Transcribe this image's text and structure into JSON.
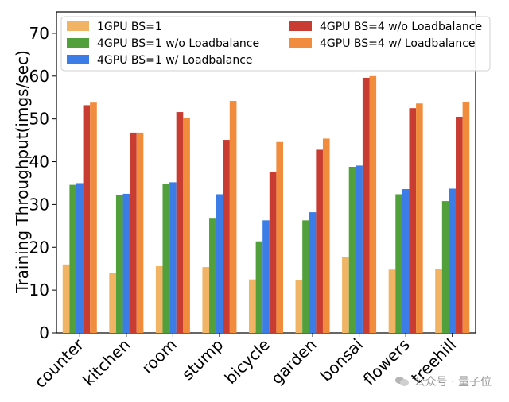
{
  "chart_data": {
    "type": "bar",
    "title": "",
    "xlabel": "",
    "ylabel": "Training Throughput(imgs/sec)",
    "ylim": [
      0,
      75
    ],
    "yticks": [
      0,
      10,
      20,
      30,
      40,
      50,
      60,
      70
    ],
    "grid": false,
    "legend_position": "top",
    "categories": [
      "counter",
      "kitchen",
      "room",
      "stump",
      "bicycle",
      "garden",
      "bonsai",
      "flowers",
      "treehill"
    ],
    "series": [
      {
        "name": "1GPU BS=1",
        "color": "#f0b464",
        "values": [
          16.0,
          14.0,
          15.6,
          15.4,
          12.5,
          12.3,
          17.8,
          14.8,
          15.0
        ]
      },
      {
        "name": "4GPU BS=1 w/o  Loadbalance",
        "color": "#52a03c",
        "values": [
          34.6,
          32.3,
          34.8,
          26.7,
          21.4,
          26.3,
          38.8,
          32.4,
          30.8
        ]
      },
      {
        "name": "4GPU BS=1 w/ Loadbalance",
        "color": "#3c7ce6",
        "values": [
          35.0,
          32.5,
          35.2,
          32.4,
          26.3,
          28.2,
          39.1,
          33.6,
          33.7
        ]
      },
      {
        "name": "4GPU BS=4 w/o Loadbalance",
        "color": "#c83c32",
        "values": [
          53.2,
          46.8,
          51.6,
          45.1,
          37.6,
          42.8,
          59.6,
          52.5,
          50.5
        ]
      },
      {
        "name": "4GPU BS=4 w/ Loadbalance",
        "color": "#f08c3c",
        "values": [
          53.8,
          46.8,
          50.3,
          54.2,
          44.6,
          45.4,
          60.0,
          53.6,
          54.0
        ]
      }
    ]
  },
  "watermark": {
    "text": "公众号 · 量子位",
    "icon": "wechat-icon"
  }
}
